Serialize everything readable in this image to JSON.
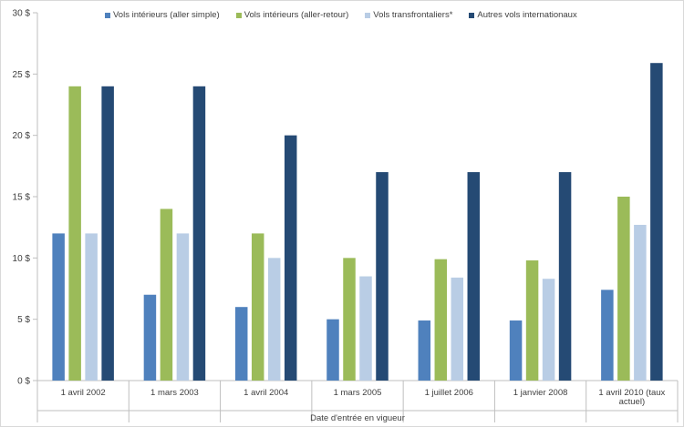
{
  "chart_data": {
    "type": "bar",
    "title": "",
    "xlabel": "Date d'entrée en vigueur",
    "ylabel": "",
    "ylim": [
      0,
      30
    ],
    "y_ticks": [
      "0 $",
      "5 $",
      "10 $",
      "15 $",
      "20 $",
      "25 $",
      "30 $"
    ],
    "y_tick_values": [
      0,
      5,
      10,
      15,
      20,
      25,
      30
    ],
    "grid": false,
    "legend_position": "top",
    "categories": [
      [
        "1 avril 2002"
      ],
      [
        "1 mars 2003"
      ],
      [
        "1 avril 2004"
      ],
      [
        "1 mars 2005"
      ],
      [
        "1 juillet 2006"
      ],
      [
        "1 janvier 2008"
      ],
      [
        "1 avril 2010 (taux",
        "actuel)"
      ]
    ],
    "series": [
      {
        "name": "Vols intérieurs (aller simple)",
        "color": "#4f81bd",
        "values": [
          12,
          7,
          6,
          5,
          4.9,
          4.9,
          7.4
        ]
      },
      {
        "name": "Vols intérieurs (aller-retour)",
        "color": "#9bbb59",
        "values": [
          24,
          14,
          12,
          10,
          9.9,
          9.8,
          15
        ]
      },
      {
        "name": "Vols transfrontaliers*",
        "color": "#b9cde5",
        "values": [
          12,
          12,
          10,
          8.5,
          8.4,
          8.3,
          12.7
        ]
      },
      {
        "name": "Autres vols internationaux",
        "color": "#254a74",
        "values": [
          24,
          24,
          20,
          17,
          17,
          17,
          25.9
        ]
      }
    ]
  }
}
